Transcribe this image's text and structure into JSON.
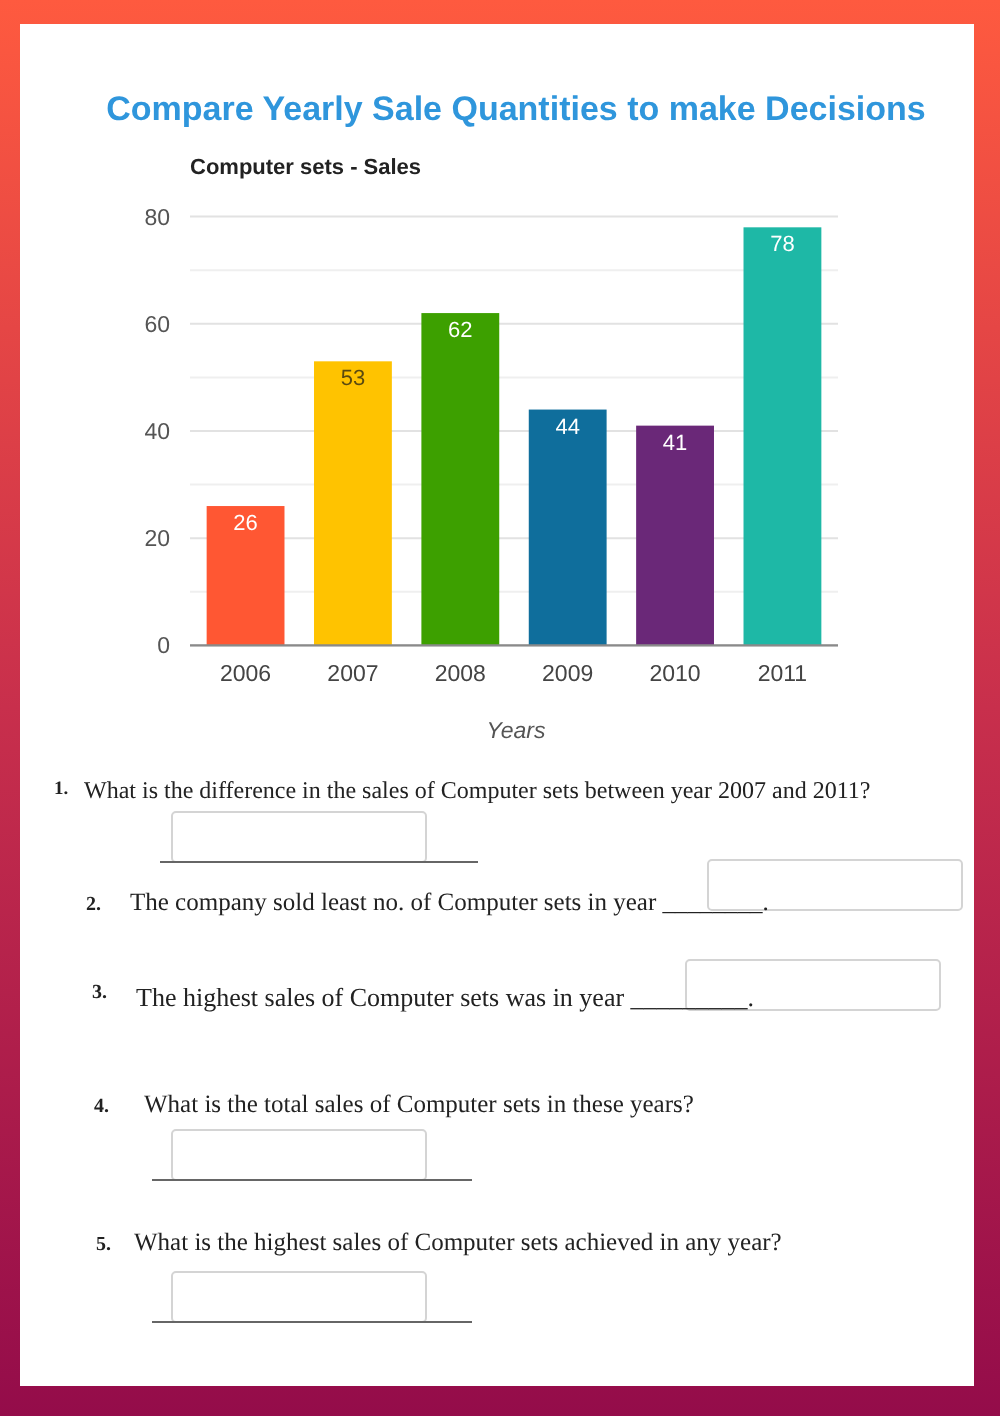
{
  "chart_data": {
    "type": "bar",
    "title": "Compare Yearly Sale Quantities to make Decisions",
    "subtitle": "Computer sets - Sales",
    "xlabel": "Years",
    "categories": [
      "2006",
      "2007",
      "2008",
      "2009",
      "2010",
      "2011"
    ],
    "values": [
      26,
      53,
      62,
      44,
      41,
      78
    ],
    "colors": [
      "#ff5733",
      "#ffc300",
      "#3da000",
      "#0f6e9c",
      "#6a2878",
      "#1eb8a6"
    ],
    "ylim": [
      0,
      80
    ],
    "yticks": [
      0,
      {
        "value": 10,
        "label": null
      },
      20,
      {
        "value": 30,
        "label": null
      },
      40,
      {
        "value": 50,
        "label": null
      },
      60,
      {
        "value": 70,
        "label": null
      },
      80
    ],
    "grid": "y",
    "data_labels": true,
    "annotations": [
      "1.",
      "What is the difference in the sales of Computer sets between year 2007 and 2011?",
      "2.",
      "The company sold least no. of Computer sets in year ________.",
      "3.",
      "The highest sales of Computer sets was in year _________.",
      "4.",
      "What is the total sales of Computer sets in these years?",
      "5.",
      "What is the highest sales of Computer sets achieved in any year?"
    ]
  }
}
